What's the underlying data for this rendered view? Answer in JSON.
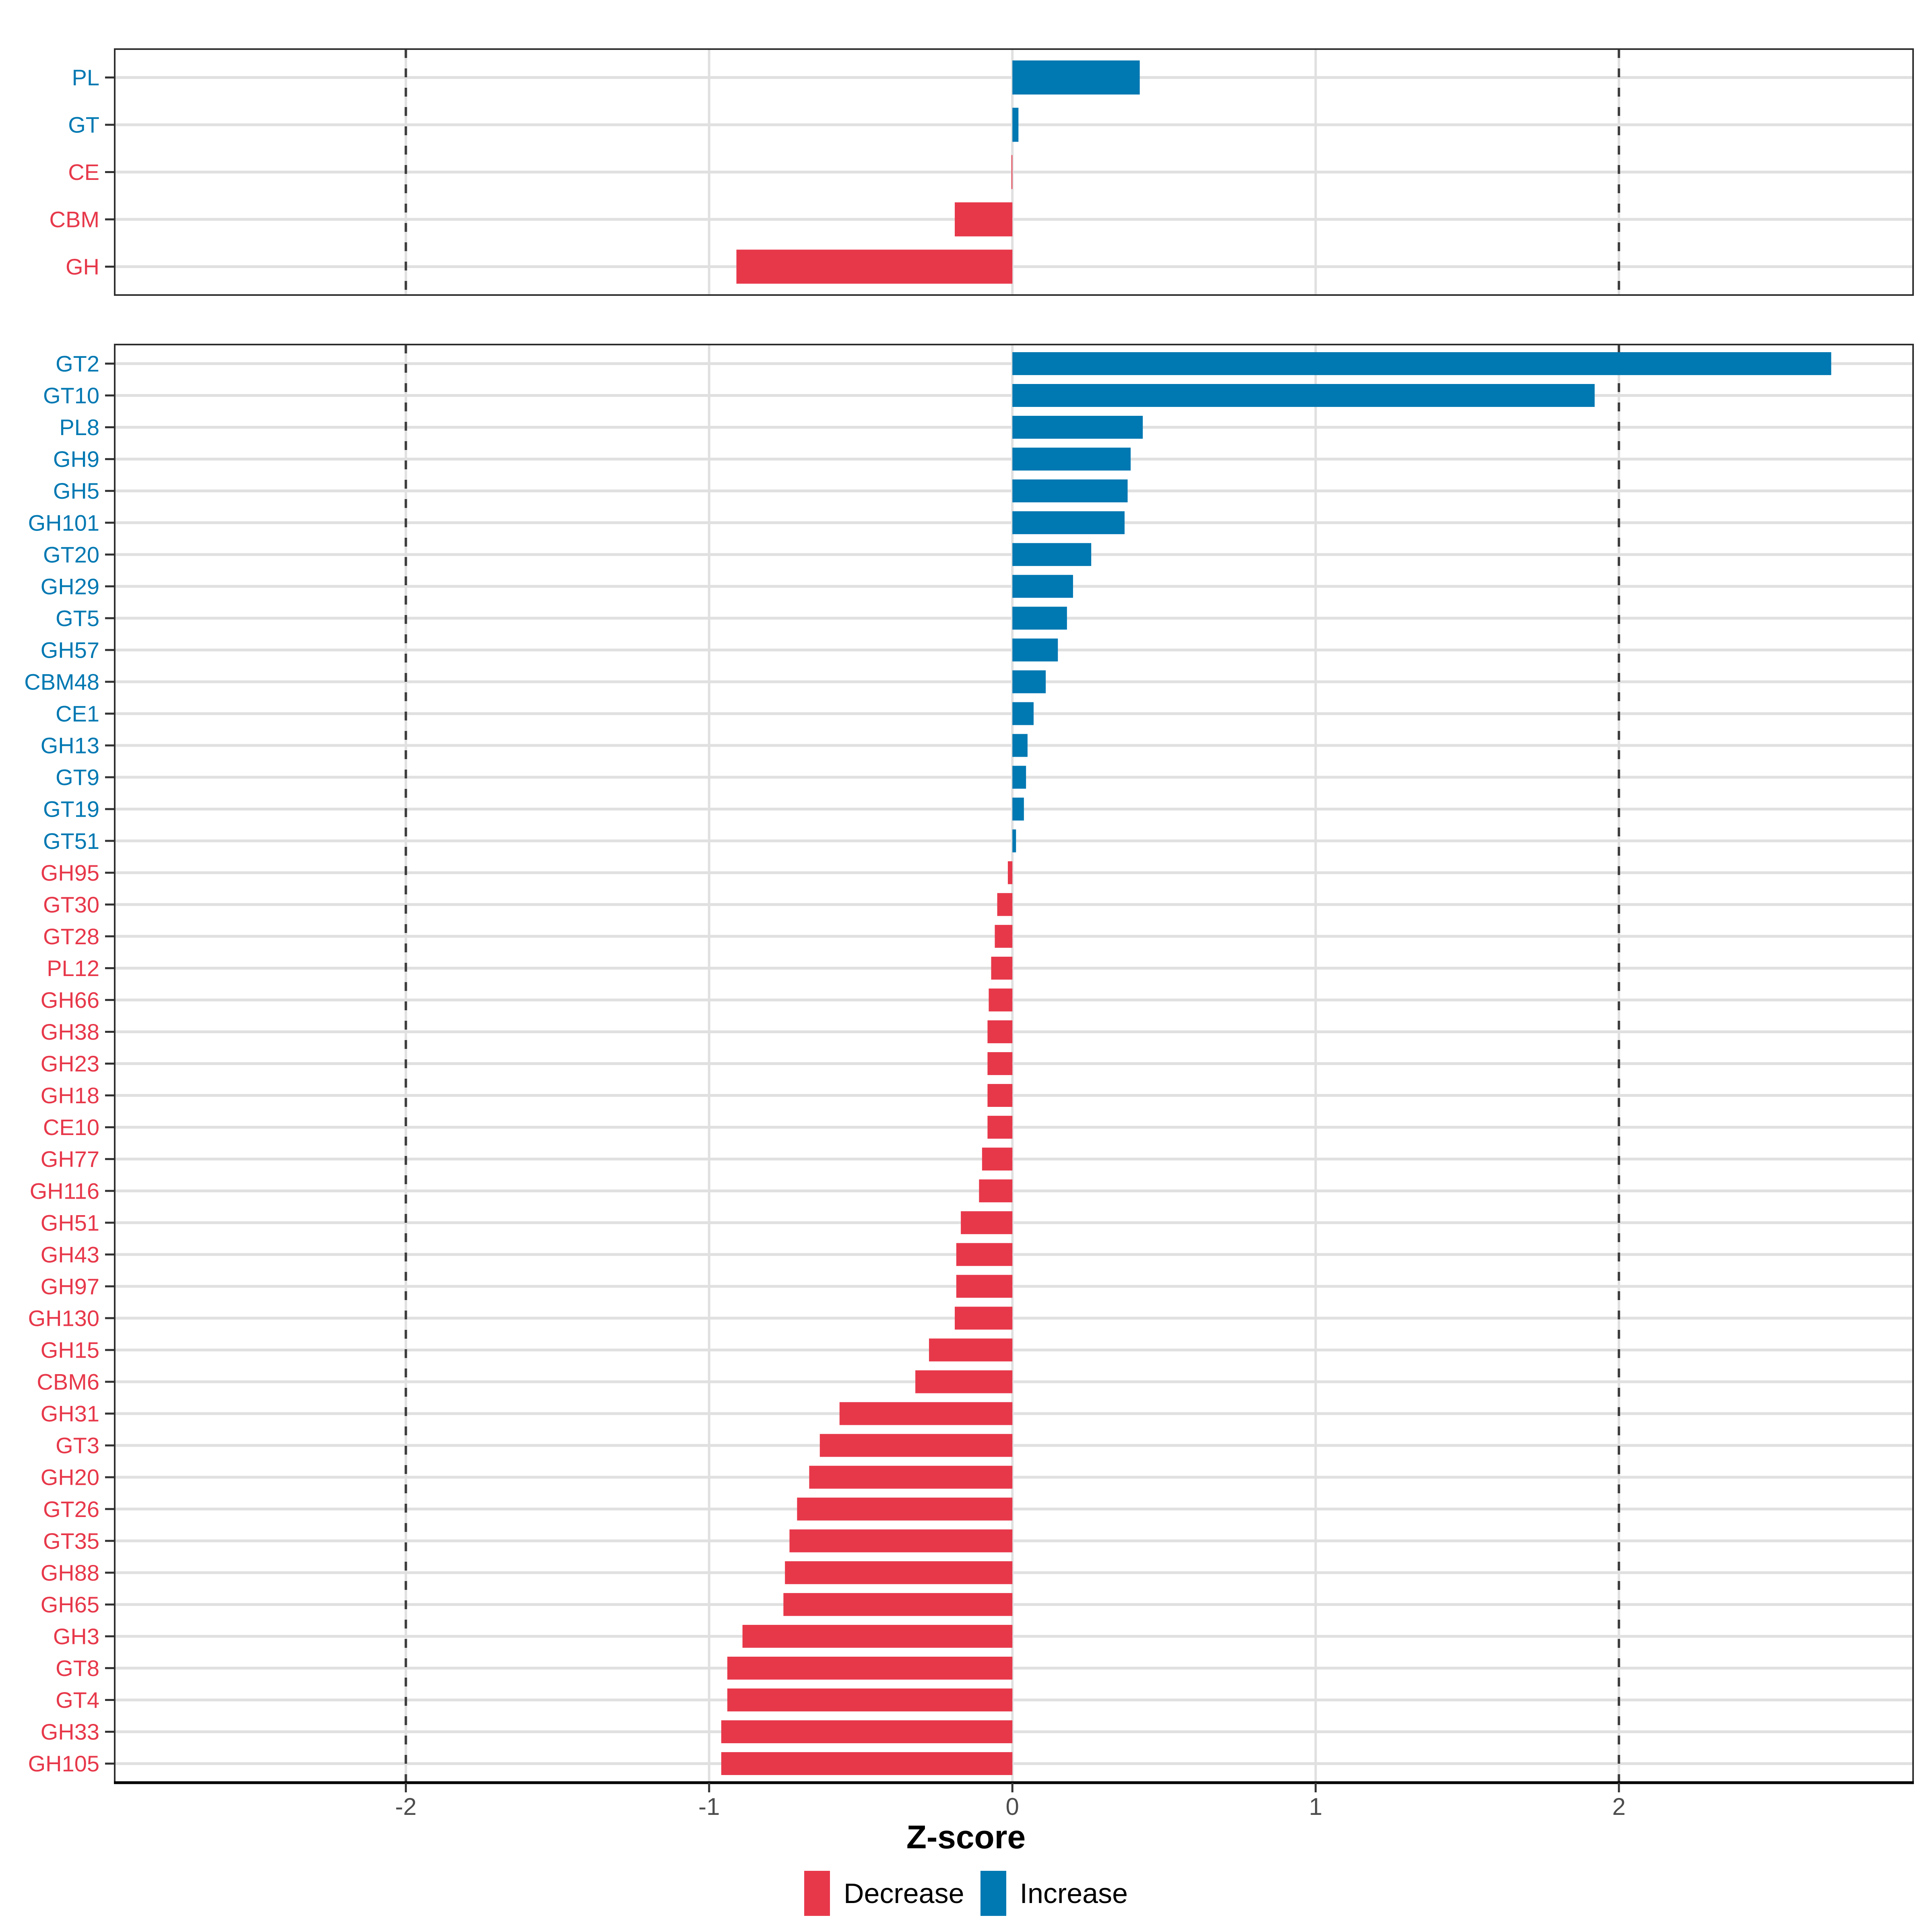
{
  "chart_data": {
    "type": "bar",
    "orientation": "horizontal",
    "xlabel": "Z-score",
    "xlim": [
      -2.96,
      2.97
    ],
    "x_ticks": [
      {
        "label": "-2",
        "value": -2
      },
      {
        "label": "-1",
        "value": -1
      },
      {
        "label": "0",
        "value": 0
      },
      {
        "label": "1",
        "value": 1
      },
      {
        "label": "2",
        "value": 2
      }
    ],
    "dashed_vlines": [
      -2,
      2
    ],
    "grid": true,
    "legend_position": "bottom",
    "colors": {
      "decrease": "#E7384A",
      "increase": "#0078B2"
    },
    "legend": [
      {
        "label": "Decrease",
        "key": "decrease"
      },
      {
        "label": "Increase",
        "key": "increase"
      }
    ],
    "panels": [
      {
        "name": "enzyme-class-summary",
        "rows": [
          {
            "label": "PL",
            "value": 0.42
          },
          {
            "label": "GT",
            "value": 0.02
          },
          {
            "label": "CE",
            "value": -0.003
          },
          {
            "label": "CBM",
            "value": -0.19
          },
          {
            "label": "GH",
            "value": -0.91
          }
        ]
      },
      {
        "name": "enzyme-family-detail",
        "rows": [
          {
            "label": "GT2",
            "value": 2.7
          },
          {
            "label": "GT10",
            "value": 1.92
          },
          {
            "label": "PL8",
            "value": 0.43
          },
          {
            "label": "GH9",
            "value": 0.39
          },
          {
            "label": "GH5",
            "value": 0.38
          },
          {
            "label": "GH101",
            "value": 0.37
          },
          {
            "label": "GT20",
            "value": 0.26
          },
          {
            "label": "GH29",
            "value": 0.2
          },
          {
            "label": "GT5",
            "value": 0.18
          },
          {
            "label": "GH57",
            "value": 0.15
          },
          {
            "label": "CBM48",
            "value": 0.11
          },
          {
            "label": "CE1",
            "value": 0.07
          },
          {
            "label": "GH13",
            "value": 0.05
          },
          {
            "label": "GT9",
            "value": 0.045
          },
          {
            "label": "GT19",
            "value": 0.038
          },
          {
            "label": "GT51",
            "value": 0.012
          },
          {
            "label": "GH95",
            "value": -0.015
          },
          {
            "label": "GT30",
            "value": -0.05
          },
          {
            "label": "GT28",
            "value": -0.058
          },
          {
            "label": "PL12",
            "value": -0.07
          },
          {
            "label": "GH66",
            "value": -0.078
          },
          {
            "label": "GH38",
            "value": -0.082
          },
          {
            "label": "GH23",
            "value": -0.082
          },
          {
            "label": "GH18",
            "value": -0.082
          },
          {
            "label": "CE10",
            "value": -0.082
          },
          {
            "label": "GH77",
            "value": -0.1
          },
          {
            "label": "GH116",
            "value": -0.11
          },
          {
            "label": "GH51",
            "value": -0.17
          },
          {
            "label": "GH43",
            "value": -0.185
          },
          {
            "label": "GH97",
            "value": -0.185
          },
          {
            "label": "GH130",
            "value": -0.19
          },
          {
            "label": "GH15",
            "value": -0.275
          },
          {
            "label": "CBM6",
            "value": -0.32
          },
          {
            "label": "GH31",
            "value": -0.57
          },
          {
            "label": "GT3",
            "value": -0.635
          },
          {
            "label": "GH20",
            "value": -0.67
          },
          {
            "label": "GT26",
            "value": -0.71
          },
          {
            "label": "GT35",
            "value": -0.735
          },
          {
            "label": "GH88",
            "value": -0.75
          },
          {
            "label": "GH65",
            "value": -0.755
          },
          {
            "label": "GH3",
            "value": -0.89
          },
          {
            "label": "GT8",
            "value": -0.94
          },
          {
            "label": "GT4",
            "value": -0.94
          },
          {
            "label": "GH33",
            "value": -0.96
          },
          {
            "label": "GH105",
            "value": -0.96
          }
        ]
      }
    ]
  }
}
